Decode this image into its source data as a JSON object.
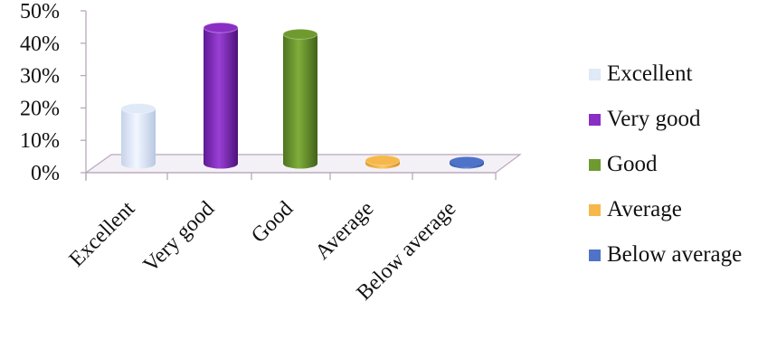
{
  "chart_data": {
    "type": "bar",
    "style": "3d-cylinder",
    "categories": [
      "Excellent",
      "Very  good",
      "Good",
      "Average",
      "Below average"
    ],
    "values": [
      17,
      42,
      40,
      1,
      0.5
    ],
    "ylim": [
      0,
      50
    ],
    "yticks": [
      "0%",
      "10%",
      "20%",
      "30%",
      "40%",
      "50%"
    ],
    "legend_position": "right",
    "legend": [
      {
        "label": "Excellent"
      },
      {
        "label": "Very  good"
      },
      {
        "label": "Good"
      },
      {
        "label": "Average"
      },
      {
        "label": "Below average"
      }
    ],
    "colors": {
      "Excellent": "#dfe9f7",
      "Very  good": "#8a2fc4",
      "Good": "#6f9a2f",
      "Average": "#f6b84a",
      "Below average": "#4f73c8"
    },
    "grid": false
  }
}
